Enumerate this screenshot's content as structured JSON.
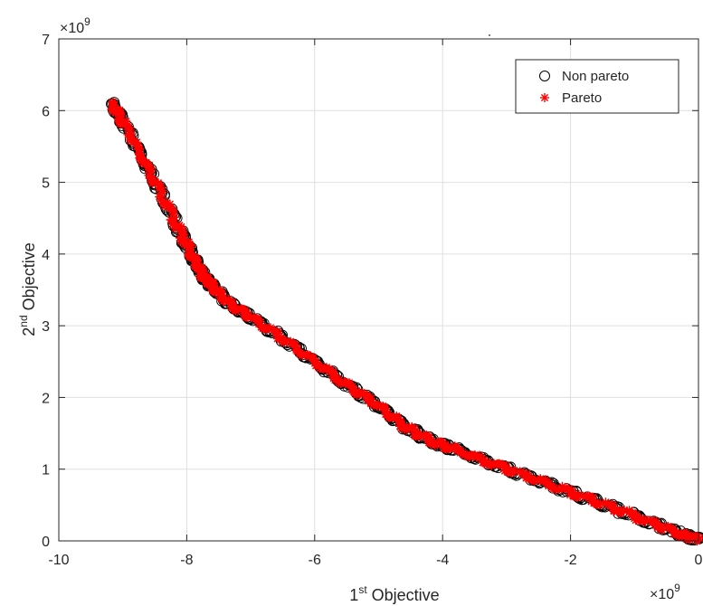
{
  "chart_data": {
    "type": "scatter",
    "title": "",
    "xlabel": {
      "base": "1",
      "sup": "st",
      "rest": " Objective"
    },
    "ylabel": {
      "base": "2",
      "sup": "nd",
      "rest": " Objective"
    },
    "x_exponent": {
      "prefix": "×10",
      "power": "9"
    },
    "y_exponent": {
      "prefix": "×10",
      "power": "9"
    },
    "xlim": [
      -10,
      0
    ],
    "ylim": [
      0,
      7
    ],
    "xticks": [
      -10,
      -8,
      -6,
      -4,
      -2,
      0
    ],
    "yticks": [
      0,
      1,
      2,
      3,
      4,
      5,
      6,
      7
    ],
    "xtick_labels": [
      "-10",
      "-8",
      "-6",
      "-4",
      "-2",
      "0"
    ],
    "ytick_labels": [
      "0",
      "1",
      "2",
      "3",
      "4",
      "5",
      "6",
      "7"
    ],
    "grid": true,
    "legend_position": "top-right",
    "series": [
      {
        "name": "Non pareto",
        "marker": "circle",
        "color": "#000000",
        "x": [
          -9.18,
          -9.0,
          -8.7,
          -8.4,
          -8.1,
          -7.9,
          -7.75,
          -7.6,
          -7.35,
          -7.0,
          -6.5,
          -6.0,
          -5.5,
          -5.0,
          -4.6,
          -4.2,
          -3.8,
          -3.2,
          -2.6,
          -2.0,
          -1.4,
          -0.8,
          -0.3,
          0.0
        ],
        "y": [
          6.1,
          5.85,
          5.35,
          4.85,
          4.3,
          3.95,
          3.7,
          3.55,
          3.32,
          3.12,
          2.82,
          2.5,
          2.18,
          1.88,
          1.6,
          1.4,
          1.27,
          1.07,
          0.88,
          0.68,
          0.48,
          0.28,
          0.1,
          0.02
        ]
      },
      {
        "name": "Pareto",
        "marker": "asterisk",
        "color": "#ff0000",
        "x": [
          -9.18,
          -9.0,
          -8.7,
          -8.4,
          -8.1,
          -7.9,
          -7.75,
          -7.6,
          -7.35,
          -7.0,
          -6.5,
          -6.0,
          -5.5,
          -5.0,
          -4.6,
          -4.2,
          -3.8,
          -3.2,
          -2.6,
          -2.0,
          -1.4,
          -0.8,
          -0.3,
          0.0
        ],
        "y": [
          6.1,
          5.85,
          5.35,
          4.85,
          4.3,
          3.95,
          3.7,
          3.55,
          3.32,
          3.12,
          2.82,
          2.5,
          2.18,
          1.88,
          1.6,
          1.4,
          1.27,
          1.07,
          0.88,
          0.68,
          0.48,
          0.28,
          0.1,
          0.02
        ]
      }
    ]
  }
}
